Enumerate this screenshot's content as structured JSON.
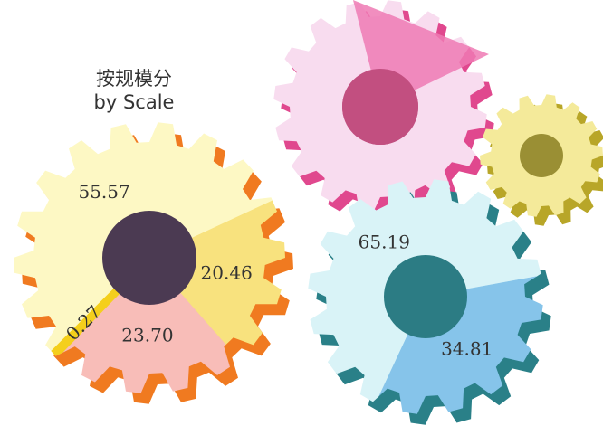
{
  "chart_data": [
    {
      "type": "pie",
      "title": "按规模分",
      "subtitle": "by Scale",
      "values": [
        55.57,
        20.46,
        23.7,
        0.27
      ],
      "value_labels": [
        "55.57",
        "20.46",
        "23.70",
        "0.27"
      ],
      "colors": [
        "#fdf8c4",
        "#f8e27e",
        "#f8bdb8",
        "#f4cf1c"
      ]
    },
    {
      "type": "pie",
      "values": [
        65.19,
        34.81
      ],
      "value_labels": [
        "65.19",
        "34.81"
      ],
      "colors": [
        "#d9f3f7",
        "#86c4ea"
      ]
    }
  ]
}
